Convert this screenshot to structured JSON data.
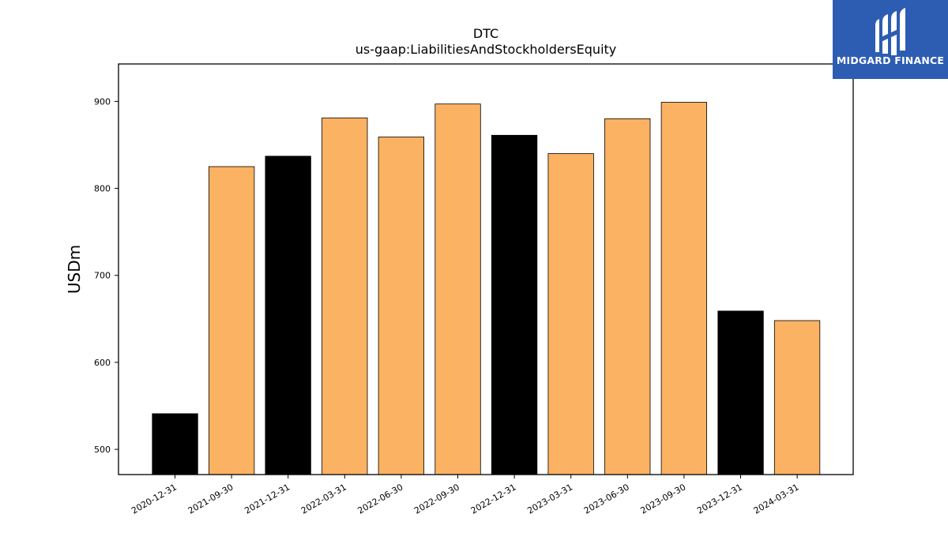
{
  "logo": {
    "text": "MIDGARD FINANCE",
    "icon": "midgard-logo-icon",
    "background": "#2d5db3"
  },
  "chart_data": {
    "type": "bar",
    "title": "DTC",
    "subtitle": "us-gaap:LiabilitiesAndStockholdersEquity",
    "xlabel": "",
    "ylabel": "USDm",
    "categories": [
      "2020-12-31",
      "2021-09-30",
      "2021-12-31",
      "2022-03-31",
      "2022-06-30",
      "2022-09-30",
      "2022-12-31",
      "2023-03-31",
      "2023-06-30",
      "2023-09-30",
      "2023-12-31",
      "2024-03-31"
    ],
    "values": [
      541,
      825,
      837,
      881,
      859,
      897,
      861,
      840,
      880,
      899,
      659,
      648
    ],
    "bar_colors": [
      "#000000",
      "#fbb262",
      "#000000",
      "#fbb262",
      "#fbb262",
      "#fbb262",
      "#000000",
      "#fbb262",
      "#fbb262",
      "#fbb262",
      "#000000",
      "#fbb262"
    ],
    "ylim": [
      471,
      943
    ],
    "yticks": [
      500,
      600,
      700,
      800,
      900
    ],
    "grid": false,
    "legend": "none"
  }
}
